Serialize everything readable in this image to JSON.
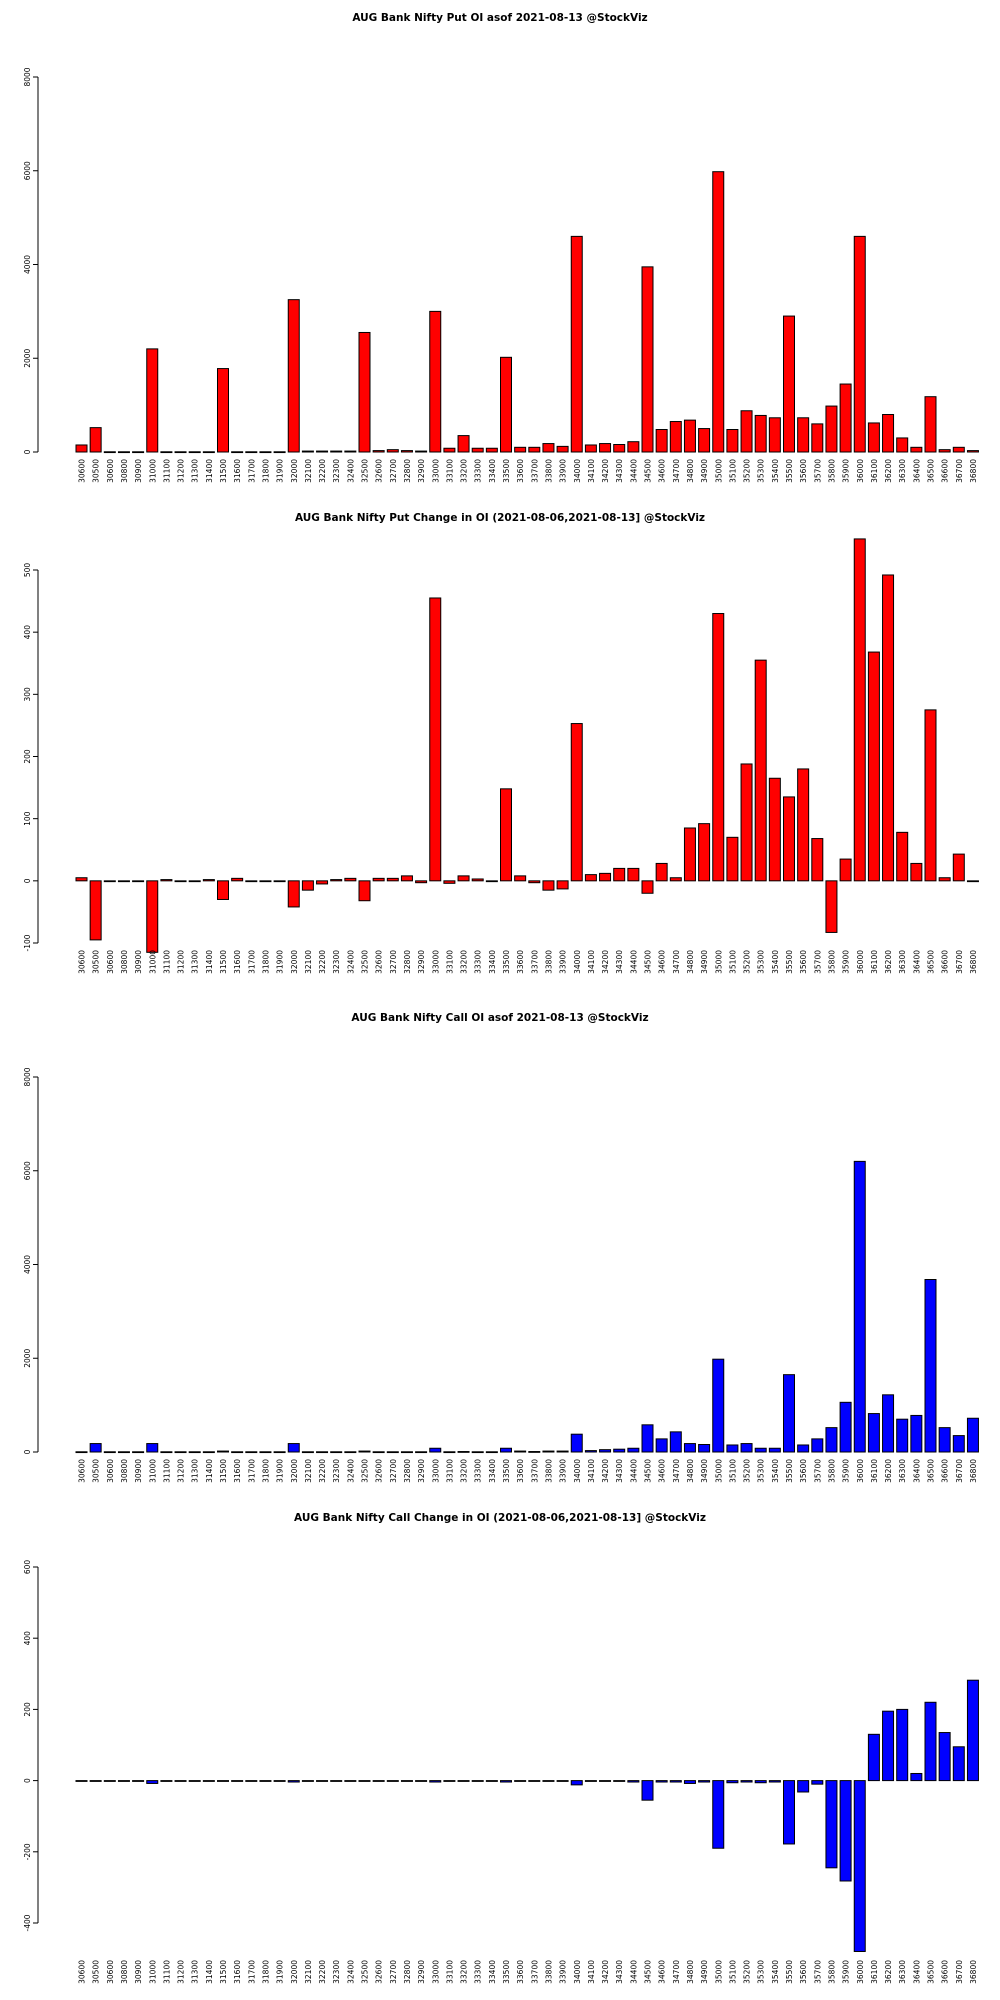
{
  "colors": {
    "put": "#ff0000",
    "call": "#0000ff"
  },
  "chart_data": [
    {
      "type": "bar",
      "title": "AUG Bank Nifty Put OI asof 2021-08-13 @StockViz",
      "xlabel": "",
      "ylabel": "",
      "ylim": [
        0,
        8000
      ],
      "yticks": [
        0,
        2000,
        4000,
        6000,
        8000
      ],
      "color": "#ff0000",
      "categories": [
        "30600",
        "30500",
        "30600",
        "30800",
        "30900",
        "31000",
        "31100",
        "31200",
        "31300",
        "31400",
        "31500",
        "31600",
        "31700",
        "31800",
        "31900",
        "32000",
        "32100",
        "32200",
        "32300",
        "32400",
        "32500",
        "32600",
        "32700",
        "32800",
        "32900",
        "33000",
        "33100",
        "33200",
        "33300",
        "33400",
        "33500",
        "33600",
        "33700",
        "33800",
        "33900",
        "34000",
        "34100",
        "34200",
        "34300",
        "34400",
        "34500",
        "34600",
        "34700",
        "34800",
        "34900",
        "35000",
        "35100",
        "35200",
        "35300",
        "35400",
        "35500",
        "35600",
        "35700",
        "35800",
        "35900",
        "36000",
        "36100",
        "36200",
        "36300",
        "36400",
        "36500",
        "36600",
        "36700",
        "36800"
      ],
      "values": [
        150,
        520,
        5,
        5,
        5,
        2200,
        5,
        5,
        5,
        5,
        1780,
        5,
        5,
        5,
        5,
        3250,
        20,
        20,
        20,
        20,
        2550,
        30,
        50,
        30,
        20,
        3000,
        80,
        350,
        80,
        80,
        2020,
        100,
        100,
        180,
        120,
        4600,
        150,
        180,
        160,
        220,
        3950,
        480,
        650,
        680,
        500,
        5980,
        480,
        880,
        780,
        730,
        2900,
        730,
        600,
        980,
        1450,
        4600,
        620,
        800,
        300,
        100,
        1180,
        50,
        100,
        30
      ],
      "tick_labels": [
        "30600",
        "30500",
        "30600",
        "30800",
        "30900",
        "31000",
        "31100",
        "31200",
        "31300",
        "31400",
        "31500",
        "31600",
        "31700",
        "31800",
        "31900",
        "32000",
        "32100",
        "32200",
        "32300",
        "32400",
        "32500",
        "32600",
        "32700",
        "32800",
        "32900",
        "33000",
        "33100",
        "33200",
        "33300",
        "33400",
        "33500",
        "33600",
        "33700",
        "33800",
        "33900",
        "34000",
        "34100",
        "34200",
        "34300",
        "34400",
        "34500",
        "34600",
        "34700",
        "34800",
        "34900",
        "35000",
        "35100",
        "35200",
        "35300",
        "35400",
        "35500",
        "35600",
        "35700",
        "35800",
        "35900",
        "36000",
        "36100",
        "36200",
        "36300",
        "36400",
        "36500",
        "36600",
        "36700",
        "36800"
      ]
    },
    {
      "type": "bar",
      "title": "AUG Bank Nifty Put Change in OI (2021-08-06,2021-08-13] @StockViz",
      "xlabel": "",
      "ylabel": "",
      "ylim": [
        -100,
        500
      ],
      "yticks": [
        -100,
        0,
        100,
        200,
        300,
        400,
        500
      ],
      "color": "#ff0000",
      "categories": [
        "30600",
        "30500",
        "30600",
        "30800",
        "30900",
        "31000",
        "31100",
        "31200",
        "31300",
        "31400",
        "31500",
        "31600",
        "31700",
        "31800",
        "31900",
        "32000",
        "32100",
        "32200",
        "32300",
        "32400",
        "32500",
        "32600",
        "32700",
        "32800",
        "32900",
        "33000",
        "33100",
        "33200",
        "33300",
        "33400",
        "33500",
        "33600",
        "33700",
        "33800",
        "33900",
        "34000",
        "34100",
        "34200",
        "34300",
        "34400",
        "34500",
        "34600",
        "34700",
        "34800",
        "34900",
        "35000",
        "35100",
        "35200",
        "35300",
        "35400",
        "35500",
        "35600",
        "35700",
        "35800",
        "35900",
        "36000",
        "36100",
        "36200",
        "36300",
        "36400",
        "36500",
        "36600",
        "36700",
        "36800"
      ],
      "values": [
        5,
        -95,
        0,
        0,
        0,
        -115,
        2,
        0,
        0,
        2,
        -30,
        4,
        0,
        0,
        0,
        -42,
        -15,
        -5,
        2,
        4,
        -32,
        4,
        4,
        8,
        -3,
        455,
        -4,
        8,
        3,
        0,
        148,
        8,
        -3,
        -15,
        -13,
        253,
        10,
        12,
        20,
        20,
        -20,
        28,
        5,
        85,
        92,
        430,
        70,
        188,
        355,
        165,
        135,
        180,
        68,
        -83,
        35,
        550,
        368,
        492,
        78,
        28,
        275,
        5,
        43,
        0
      ],
      "tick_labels": [
        "30600",
        "30500",
        "30600",
        "30800",
        "30900",
        "31000",
        "31100",
        "31200",
        "31300",
        "31400",
        "31500",
        "31600",
        "31700",
        "31800",
        "31900",
        "32000",
        "32100",
        "32200",
        "32300",
        "32400",
        "32500",
        "32600",
        "32700",
        "32800",
        "32900",
        "33000",
        "33100",
        "33200",
        "33300",
        "33400",
        "33500",
        "33600",
        "33700",
        "33800",
        "33900",
        "34000",
        "34100",
        "34200",
        "34300",
        "34400",
        "34500",
        "34600",
        "34700",
        "34800",
        "34900",
        "35000",
        "35100",
        "35200",
        "35300",
        "35400",
        "35500",
        "35600",
        "35700",
        "35800",
        "35900",
        "36000",
        "36100",
        "36200",
        "36300",
        "36400",
        "36500",
        "36600",
        "36700",
        "36800"
      ]
    },
    {
      "type": "bar",
      "title": "AUG Bank Nifty Call OI asof 2021-08-13 @StockViz",
      "xlabel": "",
      "ylabel": "",
      "ylim": [
        0,
        8000
      ],
      "yticks": [
        0,
        2000,
        4000,
        6000,
        8000
      ],
      "color": "#0000ff",
      "categories": [
        "30600",
        "30500",
        "30600",
        "30800",
        "30900",
        "31000",
        "31100",
        "31200",
        "31300",
        "31400",
        "31500",
        "31600",
        "31700",
        "31800",
        "31900",
        "32000",
        "32100",
        "32200",
        "32300",
        "32400",
        "32500",
        "32600",
        "32700",
        "32800",
        "32900",
        "33000",
        "33100",
        "33200",
        "33300",
        "33400",
        "33500",
        "33600",
        "33700",
        "33800",
        "33900",
        "34000",
        "34100",
        "34200",
        "34300",
        "34400",
        "34500",
        "34600",
        "34700",
        "34800",
        "34900",
        "35000",
        "35100",
        "35200",
        "35300",
        "35400",
        "35500",
        "35600",
        "35700",
        "35800",
        "35900",
        "36000",
        "36100",
        "36200",
        "36300",
        "36400",
        "36500",
        "36600",
        "36700",
        "36800"
      ],
      "values": [
        5,
        180,
        5,
        5,
        5,
        180,
        5,
        5,
        5,
        5,
        20,
        5,
        5,
        5,
        5,
        180,
        5,
        5,
        5,
        5,
        20,
        5,
        5,
        5,
        5,
        80,
        5,
        10,
        5,
        5,
        80,
        20,
        10,
        20,
        20,
        380,
        30,
        50,
        60,
        80,
        580,
        280,
        430,
        180,
        160,
        1980,
        150,
        180,
        80,
        80,
        1650,
        150,
        280,
        520,
        1060,
        6200,
        820,
        1220,
        700,
        780,
        3680,
        520,
        350,
        720
      ],
      "tick_labels": [
        "30600",
        "30500",
        "30600",
        "30800",
        "30900",
        "31000",
        "31100",
        "31200",
        "31300",
        "31400",
        "31500",
        "31600",
        "31700",
        "31800",
        "31900",
        "32000",
        "32100",
        "32200",
        "32300",
        "32400",
        "32500",
        "32600",
        "32700",
        "32800",
        "32900",
        "33000",
        "33100",
        "33200",
        "33300",
        "33400",
        "33500",
        "33600",
        "33700",
        "33800",
        "33900",
        "34000",
        "34100",
        "34200",
        "34300",
        "34400",
        "34500",
        "34600",
        "34700",
        "34800",
        "34900",
        "35000",
        "35100",
        "35200",
        "35300",
        "35400",
        "35500",
        "35600",
        "35700",
        "35800",
        "35900",
        "36000",
        "36100",
        "36200",
        "36300",
        "36400",
        "36500",
        "36600",
        "36700",
        "36800"
      ]
    },
    {
      "type": "bar",
      "title": "AUG Bank Nifty Call Change in OI (2021-08-06,2021-08-13] @StockViz",
      "xlabel": "",
      "ylabel": "",
      "ylim": [
        -400,
        600
      ],
      "yticks": [
        -400,
        -200,
        0,
        200,
        400,
        600
      ],
      "color": "#0000ff",
      "categories": [
        "30600",
        "30500",
        "30600",
        "30800",
        "30900",
        "31000",
        "31100",
        "31200",
        "31300",
        "31400",
        "31500",
        "31600",
        "31700",
        "31800",
        "31900",
        "32000",
        "32100",
        "32200",
        "32300",
        "32400",
        "32500",
        "32600",
        "32700",
        "32800",
        "32900",
        "33000",
        "33100",
        "33200",
        "33300",
        "33400",
        "33500",
        "33600",
        "33700",
        "33800",
        "33900",
        "34000",
        "34100",
        "34200",
        "34300",
        "34400",
        "34500",
        "34600",
        "34700",
        "34800",
        "34900",
        "35000",
        "35100",
        "35200",
        "35300",
        "35400",
        "35500",
        "35600",
        "35700",
        "35800",
        "35900",
        "36000",
        "36100",
        "36200",
        "36300",
        "36400",
        "36500",
        "36600",
        "36700",
        "36800"
      ],
      "values": [
        -2,
        -2,
        -2,
        -2,
        -2,
        -8,
        -2,
        -2,
        -2,
        -2,
        -2,
        -2,
        -2,
        -2,
        -2,
        -4,
        -2,
        -2,
        -2,
        -2,
        -2,
        -2,
        -2,
        -2,
        -2,
        -4,
        -2,
        -2,
        -2,
        -2,
        -4,
        -2,
        -2,
        -2,
        -2,
        -12,
        -2,
        -2,
        -2,
        -4,
        -55,
        -4,
        -4,
        -8,
        -4,
        -190,
        -6,
        -4,
        -6,
        -4,
        -178,
        -32,
        -10,
        -245,
        -282,
        -480,
        130,
        195,
        200,
        20,
        220,
        135,
        95,
        282
      ],
      "tick_labels": [
        "30600",
        "30500",
        "30600",
        "30800",
        "30900",
        "31000",
        "31100",
        "31200",
        "31300",
        "31400",
        "31500",
        "31600",
        "31700",
        "31800",
        "31900",
        "32000",
        "32100",
        "32200",
        "32300",
        "32400",
        "32500",
        "32600",
        "32700",
        "32800",
        "32900",
        "33000",
        "33100",
        "33200",
        "33300",
        "33400",
        "33500",
        "33600",
        "33700",
        "33800",
        "33900",
        "34000",
        "34100",
        "34200",
        "34300",
        "34400",
        "34500",
        "34600",
        "34700",
        "34800",
        "34900",
        "35000",
        "35100",
        "35200",
        "35300",
        "35400",
        "35500",
        "35600",
        "35700",
        "35800",
        "35900",
        "36000",
        "36100",
        "36200",
        "36300",
        "36400",
        "36500",
        "36600",
        "36700",
        "36800"
      ]
    }
  ]
}
